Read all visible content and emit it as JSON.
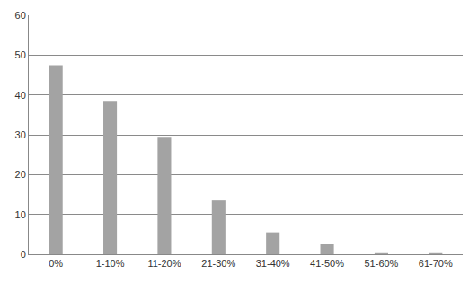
{
  "chart_data": {
    "type": "bar",
    "categories": [
      "0%",
      "1-10%",
      "11-20%",
      "21-30%",
      "31-40%",
      "41-50%",
      "51-60%",
      "61-70%"
    ],
    "values": [
      47.5,
      38.5,
      29.5,
      13.5,
      5.5,
      2.5,
      0.5,
      0.5
    ],
    "color": "#a3a3a3",
    "ylim": [
      0,
      60
    ],
    "yticks": [
      0,
      10,
      20,
      30,
      40,
      50,
      60
    ],
    "grid": true
  }
}
